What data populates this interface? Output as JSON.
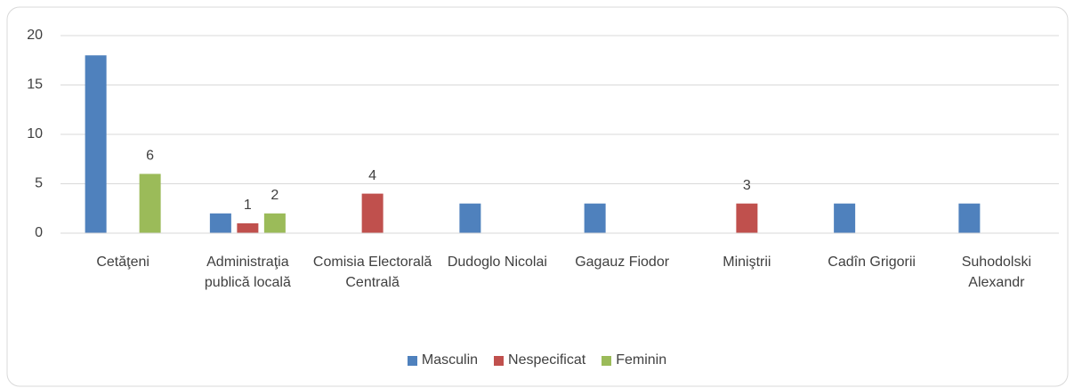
{
  "chart_data": {
    "type": "bar",
    "categories": [
      "Cetăţeni",
      "Administraţia publică locală",
      "Comisia Electorală Centrală",
      "Dudoglo Nicolai",
      "Gagauz Fiodor",
      "Miniştrii",
      "Cadîn Grigorii",
      "Suhodolski Alexandr"
    ],
    "series": [
      {
        "name": "Masculin",
        "color": "#4f81bd",
        "labels": false,
        "values": [
          18,
          2,
          null,
          3,
          3,
          null,
          3,
          3
        ]
      },
      {
        "name": "Nespecificat",
        "color": "#c0504d",
        "labels": true,
        "values": [
          null,
          1,
          4,
          null,
          null,
          3,
          null,
          null
        ]
      },
      {
        "name": "Feminin",
        "color": "#9bbb59",
        "labels": true,
        "values": [
          6,
          2,
          null,
          null,
          null,
          null,
          null,
          null
        ]
      }
    ],
    "ylim": [
      0,
      20
    ],
    "yticks": [
      0,
      5,
      10,
      15,
      20
    ],
    "grid": true,
    "legend": "bottom"
  }
}
